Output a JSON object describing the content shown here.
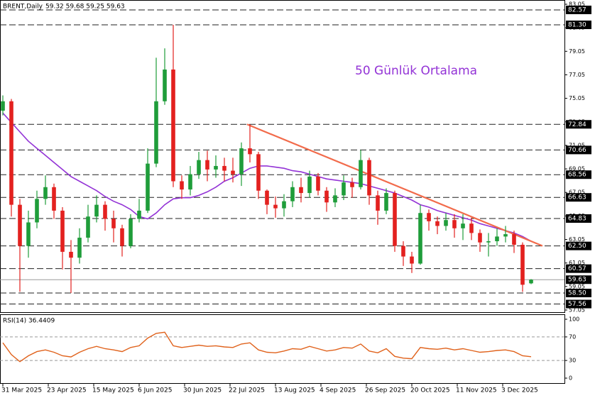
{
  "chart_data": {
    "type": "candlestick",
    "title": "BRENT,Daily",
    "ohlc_label": "59.32 59.68 59.25 59.63",
    "annotation": "50 Günlük Ortalama",
    "xlim": [
      -1,
      197.75
    ],
    "xticks": [
      {
        "value": 0,
        "label": "31 Mar 2025"
      },
      {
        "value": 16,
        "label": "23 Apr 2025"
      },
      {
        "value": 32,
        "label": "15 May 2025"
      },
      {
        "value": 48,
        "label": "6 Jun 2025"
      },
      {
        "value": 64,
        "label": "30 Jun 2025"
      },
      {
        "value": 80,
        "label": "22 Jul 2025"
      },
      {
        "value": 96,
        "label": "13 Aug 2025"
      },
      {
        "value": 112,
        "label": "4 Sep 2025"
      },
      {
        "value": 128,
        "label": "26 Sep 2025"
      },
      {
        "value": 144,
        "label": "20 Oct 2025"
      },
      {
        "value": 160,
        "label": "11 Nov 2025"
      },
      {
        "value": 176,
        "label": "3 Dec 2025"
      }
    ],
    "ylim": [
      57.05,
      83.05
    ],
    "yticks": [
      57.05,
      59.05,
      61.05,
      63.05,
      65.05,
      67.05,
      69.05,
      71.05,
      73.05,
      75.05,
      77.05,
      79.05,
      81.05,
      83.05
    ],
    "levels": [
      82.57,
      {
        "value": 81.3,
        "label": "81.30"
      },
      72.84,
      70.66,
      68.56,
      66.63,
      64.83,
      {
        "value": 62.5,
        "label": "62.50"
      },
      60.57,
      {
        "value": 58.5,
        "label": "58.50"
      },
      57.56
    ],
    "last_price": 59.63,
    "up_color": "#1f9d3a",
    "down_color": "#e3211f",
    "x": [
      0,
      3,
      6,
      9,
      12,
      15,
      18,
      21,
      24,
      27,
      30,
      33,
      36,
      39,
      42,
      45,
      48,
      51,
      54,
      57,
      60,
      63,
      66,
      69,
      72,
      75,
      78,
      81,
      84,
      87,
      90,
      93,
      96,
      99,
      102,
      105,
      108,
      111,
      114,
      117,
      120,
      123,
      126,
      129,
      132,
      135,
      138,
      141,
      144,
      147,
      150,
      153,
      156,
      159,
      162,
      165,
      168,
      171,
      174,
      177,
      180,
      183,
      186
    ],
    "open": [
      74.0,
      74.8,
      66.0,
      62.5,
      64.5,
      66.5,
      67.5,
      65.5,
      62.0,
      61.5,
      63.2,
      65.0,
      66.0,
      64.8,
      64.0,
      62.5,
      64.8,
      65.5,
      69.5,
      74.8,
      77.5,
      68.0,
      67.3,
      68.6,
      69.8,
      69.0,
      69.3,
      68.9,
      68.6,
      70.8,
      70.3,
      67.2,
      66.0,
      65.7,
      66.3,
      67.5,
      67.0,
      68.4,
      67.2,
      66.2,
      66.8,
      67.9,
      67.5,
      69.8,
      66.8,
      65.5,
      67.0,
      62.5,
      61.6,
      61.0,
      65.3,
      64.6,
      64.2,
      64.7,
      64.0,
      64.4,
      63.6,
      62.8,
      62.9,
      63.3,
      63.5,
      62.6,
      59.32
    ],
    "high": [
      75.3,
      75.0,
      66.5,
      65.5,
      67.2,
      68.5,
      67.8,
      65.8,
      63.0,
      64.0,
      66.0,
      66.8,
      66.3,
      65.5,
      64.3,
      65.2,
      66.5,
      70.8,
      78.5,
      79.3,
      81.3,
      68.5,
      69.3,
      70.5,
      70.6,
      70.2,
      70.0,
      70.0,
      71.3,
      72.84,
      70.5,
      67.3,
      66.7,
      66.9,
      68.0,
      68.3,
      68.9,
      68.7,
      67.5,
      67.4,
      68.5,
      68.3,
      70.66,
      70.0,
      67.2,
      67.4,
      67.2,
      62.9,
      62.0,
      66.0,
      65.6,
      65.0,
      65.3,
      65.2,
      65.2,
      64.9,
      63.9,
      63.6,
      64.0,
      64.2,
      63.8,
      62.8,
      59.68
    ],
    "low": [
      73.6,
      65.0,
      58.6,
      61.5,
      64.0,
      66.0,
      64.8,
      60.5,
      58.5,
      61.0,
      62.8,
      64.5,
      63.8,
      62.8,
      61.6,
      62.3,
      64.5,
      65.3,
      69.2,
      74.5,
      67.5,
      66.5,
      66.8,
      68.2,
      68.0,
      68.3,
      68.0,
      67.9,
      67.6,
      69.6,
      66.5,
      65.2,
      64.9,
      65.0,
      65.8,
      66.2,
      66.6,
      66.8,
      65.4,
      65.8,
      66.4,
      66.6,
      67.3,
      66.0,
      64.3,
      65.2,
      62.0,
      60.8,
      60.2,
      60.9,
      63.8,
      63.5,
      63.8,
      63.2,
      63.0,
      63.0,
      62.0,
      61.6,
      62.5,
      62.8,
      61.9,
      58.6,
      59.25
    ],
    "close": [
      74.8,
      66.0,
      62.5,
      64.5,
      66.5,
      67.5,
      65.5,
      62.0,
      61.5,
      63.2,
      65.0,
      66.0,
      64.8,
      64.0,
      62.5,
      64.8,
      65.5,
      69.5,
      74.8,
      77.5,
      68.0,
      67.3,
      68.6,
      69.8,
      69.0,
      69.3,
      68.9,
      68.6,
      70.8,
      70.3,
      67.2,
      66.0,
      65.7,
      66.3,
      67.5,
      67.0,
      68.4,
      67.2,
      66.2,
      66.8,
      67.9,
      67.5,
      69.8,
      66.8,
      65.5,
      67.0,
      62.5,
      61.6,
      61.0,
      65.3,
      64.6,
      64.2,
      64.7,
      64.0,
      64.4,
      63.6,
      62.8,
      62.9,
      63.3,
      63.5,
      62.6,
      59.2,
      59.63
    ],
    "moving_average": {
      "color": "#9333d6",
      "values": [
        73.8,
        73.0,
        72.2,
        71.4,
        70.8,
        70.2,
        69.6,
        69.0,
        68.4,
        68.0,
        67.6,
        67.2,
        66.7,
        66.3,
        66.0,
        65.6,
        65.0,
        64.8,
        65.3,
        66.0,
        66.5,
        66.6,
        66.6,
        66.8,
        67.1,
        67.5,
        68.0,
        68.3,
        68.7,
        69.1,
        69.3,
        69.3,
        69.2,
        69.1,
        68.9,
        68.8,
        68.6,
        68.4,
        68.2,
        68.1,
        68.0,
        67.9,
        67.8,
        67.6,
        67.4,
        67.2,
        67.0,
        66.7,
        66.4,
        66.0,
        65.8,
        65.5,
        65.3,
        65.1,
        64.9,
        64.7,
        64.4,
        64.2,
        64.0,
        63.8,
        63.6,
        63.3,
        62.9
      ]
    },
    "trendline": {
      "color": "#f26b4b",
      "x": [
        86,
        190
      ],
      "y": [
        72.84,
        62.5
      ]
    },
    "indicator": {
      "title": "RSI(14) 36.4409",
      "color": "#e0621c",
      "ylim": [
        0,
        100
      ],
      "yticks": [
        100,
        70,
        30,
        0
      ],
      "levels": [
        70,
        30
      ],
      "values": [
        60,
        40,
        28,
        38,
        45,
        48,
        44,
        38,
        36,
        44,
        50,
        54,
        50,
        48,
        45,
        52,
        55,
        68,
        76,
        78,
        55,
        52,
        54,
        56,
        54,
        55,
        53,
        52,
        58,
        60,
        48,
        44,
        43,
        46,
        50,
        49,
        54,
        50,
        46,
        48,
        52,
        51,
        58,
        46,
        43,
        50,
        37,
        34,
        33,
        52,
        50,
        49,
        51,
        48,
        50,
        47,
        44,
        45,
        47,
        48,
        45,
        38,
        36.4409
      ]
    }
  }
}
